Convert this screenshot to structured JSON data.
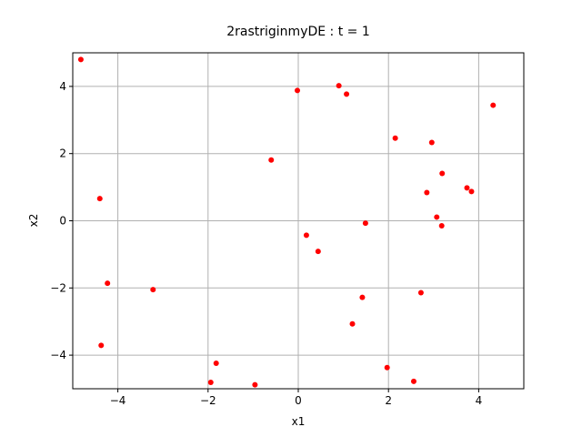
{
  "chart_data": {
    "type": "scatter",
    "title": "2rastriginmyDE : t =  1",
    "xlabel": "x1",
    "ylabel": "x2",
    "xlim": [
      -5,
      5
    ],
    "ylim": [
      -5,
      5
    ],
    "xticks": [
      -4,
      -2,
      0,
      2,
      4
    ],
    "yticks": [
      -4,
      -2,
      0,
      2,
      4
    ],
    "xtick_labels": [
      "−4",
      "−2",
      "0",
      "2",
      "4"
    ],
    "ytick_labels": [
      "−4",
      "−2",
      "0",
      "2",
      "4"
    ],
    "grid": true,
    "marker_color": "#ff0000",
    "points": [
      {
        "x": -4.82,
        "y": 4.8
      },
      {
        "x": -0.02,
        "y": 3.88
      },
      {
        "x": 0.9,
        "y": 4.02
      },
      {
        "x": 1.07,
        "y": 3.77
      },
      {
        "x": 4.32,
        "y": 3.44
      },
      {
        "x": 2.15,
        "y": 2.46
      },
      {
        "x": 2.96,
        "y": 2.33
      },
      {
        "x": -0.6,
        "y": 1.81
      },
      {
        "x": 3.19,
        "y": 1.41
      },
      {
        "x": 3.74,
        "y": 0.98
      },
      {
        "x": 3.84,
        "y": 0.87
      },
      {
        "x": 2.85,
        "y": 0.84
      },
      {
        "x": -4.4,
        "y": 0.66
      },
      {
        "x": 3.07,
        "y": 0.11
      },
      {
        "x": 1.49,
        "y": -0.07
      },
      {
        "x": 3.18,
        "y": -0.15
      },
      {
        "x": 0.18,
        "y": -0.43
      },
      {
        "x": 0.44,
        "y": -0.91
      },
      {
        "x": -4.23,
        "y": -1.86
      },
      {
        "x": -3.22,
        "y": -2.05
      },
      {
        "x": 2.72,
        "y": -2.14
      },
      {
        "x": 1.42,
        "y": -2.28
      },
      {
        "x": 1.2,
        "y": -3.07
      },
      {
        "x": -4.37,
        "y": -3.71
      },
      {
        "x": -1.82,
        "y": -4.24
      },
      {
        "x": 1.97,
        "y": -4.37
      },
      {
        "x": -1.94,
        "y": -4.81
      },
      {
        "x": 2.56,
        "y": -4.78
      },
      {
        "x": -0.96,
        "y": -4.88
      }
    ]
  }
}
